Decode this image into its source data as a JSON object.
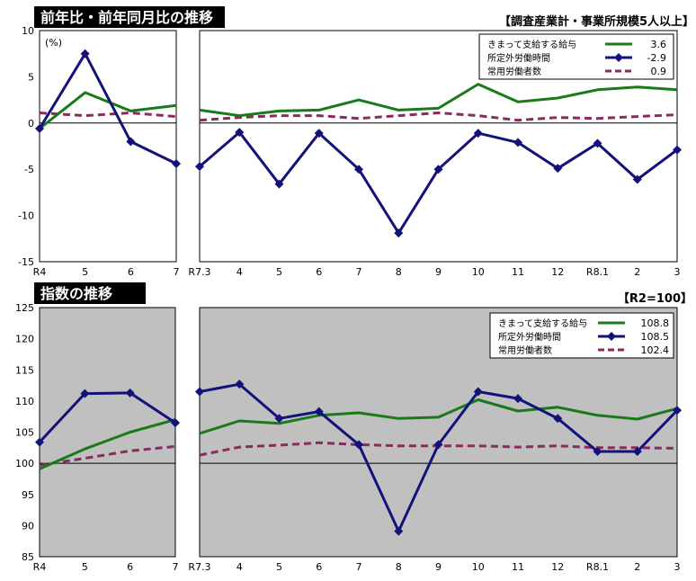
{
  "colors": {
    "wages": "#1a7a1a",
    "hours": "#12127a",
    "employees": "#8a2a5e",
    "panel_bg_index": "#c0c0c0",
    "title_bg": "#000000",
    "title_fg": "#ffffff"
  },
  "yoy": {
    "title": "前年比・前年同月比の推移",
    "scope_note": "【調査産業計・事業所規模5人以上】",
    "unit_label": "(%)",
    "legend": [
      {
        "name": "きまって支給する給与",
        "value": "3.6"
      },
      {
        "name": "所定外労働時間",
        "value": "-2.9"
      },
      {
        "name": "常用労働者数",
        "value": "0.9"
      }
    ]
  },
  "index": {
    "title": "指数の推移",
    "base_note": "【R2=100】",
    "legend": [
      {
        "name": "きまって支給する給与",
        "value": "108.8"
      },
      {
        "name": "所定外労働時間",
        "value": "108.5"
      },
      {
        "name": "常用労働者数",
        "value": "102.4"
      }
    ]
  },
  "chart_data": [
    {
      "type": "line",
      "panel": "yoy-annual",
      "x": [
        "R4",
        "5",
        "6",
        "7"
      ],
      "ylim": [
        -15,
        10
      ],
      "yticks": [
        -15,
        -10,
        -5,
        0,
        5,
        10
      ],
      "ylabel": "(%)",
      "series": [
        {
          "name": "きまって支給する給与",
          "values": [
            -0.6,
            3.3,
            1.3,
            1.9
          ]
        },
        {
          "name": "所定外労働時間",
          "values": [
            -0.6,
            7.5,
            -2.0,
            -4.4
          ]
        },
        {
          "name": "常用労働者数",
          "values": [
            1.1,
            0.8,
            1.1,
            0.7
          ]
        }
      ]
    },
    {
      "type": "line",
      "panel": "yoy-monthly",
      "x": [
        "R7.3",
        "4",
        "5",
        "6",
        "7",
        "8",
        "9",
        "10",
        "11",
        "12",
        "R8.1",
        "2",
        "3"
      ],
      "ylim": [
        -15,
        10
      ],
      "series": [
        {
          "name": "きまって支給する給与",
          "values": [
            1.4,
            0.8,
            1.3,
            1.4,
            2.5,
            1.4,
            1.6,
            4.2,
            2.3,
            2.7,
            3.6,
            3.9,
            3.6
          ]
        },
        {
          "name": "所定外労働時間",
          "values": [
            -4.7,
            -1.0,
            -6.6,
            -1.1,
            -5.0,
            -11.9,
            -5.0,
            -1.1,
            -2.1,
            -4.9,
            -2.2,
            -6.1,
            -2.9
          ]
        },
        {
          "name": "常用労働者数",
          "values": [
            0.3,
            0.6,
            0.8,
            0.8,
            0.5,
            0.8,
            1.1,
            0.8,
            0.3,
            0.6,
            0.5,
            0.7,
            0.9
          ]
        }
      ]
    },
    {
      "type": "line",
      "panel": "index-annual",
      "x": [
        "R4",
        "5",
        "6",
        "7"
      ],
      "ylim": [
        85,
        125
      ],
      "yticks": [
        85,
        90,
        95,
        100,
        105,
        110,
        115,
        120,
        125
      ],
      "series": [
        {
          "name": "きまって支給する給与",
          "values": [
            99.1,
            102.3,
            105.0,
            107.0
          ]
        },
        {
          "name": "所定外労働時間",
          "values": [
            103.4,
            111.2,
            111.3,
            106.5
          ]
        },
        {
          "name": "常用労働者数",
          "values": [
            99.7,
            100.8,
            102.0,
            102.7
          ]
        }
      ]
    },
    {
      "type": "line",
      "panel": "index-monthly",
      "x": [
        "R7.3",
        "4",
        "5",
        "6",
        "7",
        "8",
        "9",
        "10",
        "11",
        "12",
        "R8.1",
        "2",
        "3"
      ],
      "ylim": [
        85,
        125
      ],
      "series": [
        {
          "name": "きまって支給する給与",
          "values": [
            104.8,
            106.8,
            106.4,
            107.7,
            108.1,
            107.2,
            107.4,
            110.2,
            108.4,
            109.0,
            107.7,
            107.1,
            108.8
          ]
        },
        {
          "name": "所定外労働時間",
          "values": [
            111.5,
            112.7,
            107.2,
            108.3,
            103.0,
            89.1,
            103.0,
            111.5,
            110.4,
            107.2,
            101.9,
            101.9,
            108.5
          ]
        },
        {
          "name": "常用労働者数",
          "values": [
            101.3,
            102.6,
            102.9,
            103.3,
            103.0,
            102.8,
            102.8,
            102.8,
            102.6,
            102.8,
            102.5,
            102.5,
            102.4
          ]
        }
      ]
    }
  ]
}
